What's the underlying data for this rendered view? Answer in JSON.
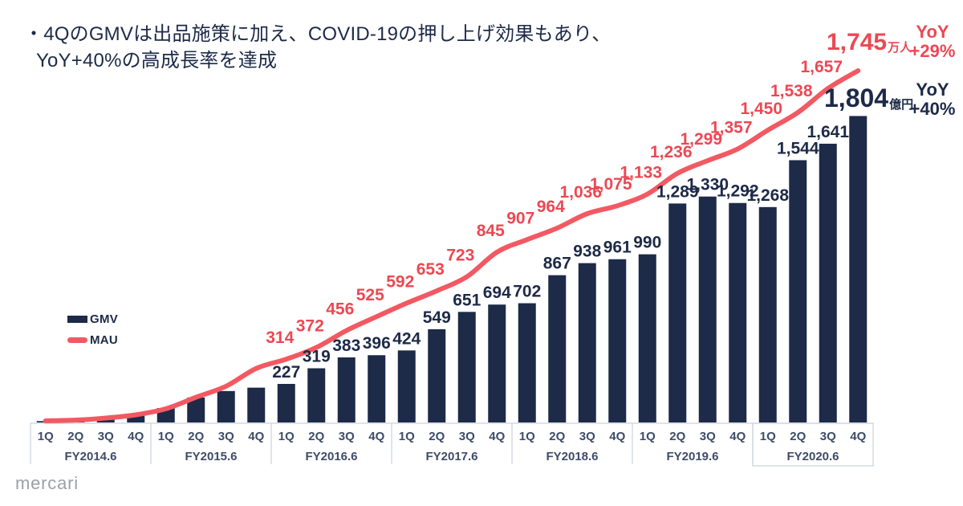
{
  "title": {
    "line1": "・4QのGMVは出品施策に加え、COVID-19の押し上げ効果もあり、",
    "line2": "YoY+40%の高成長率を達成"
  },
  "legend": {
    "gmv": "GMV",
    "mau": "MAU"
  },
  "highlights": {
    "mau_final": {
      "value": "1,745",
      "unit": "万人",
      "yoy_label": "YoY",
      "yoy_value": "+29%"
    },
    "gmv_final": {
      "value": "1,804",
      "unit": "億円",
      "yoy_label": "YoY",
      "yoy_value": "+40%"
    }
  },
  "footer": {
    "logo": "mercari"
  },
  "colors": {
    "navy": "#1d2a48",
    "red_text": "#ed4853",
    "red_line": "#f25962",
    "axis_text": "#3e4c68",
    "band_line": "#c9d1dd",
    "logo_gray": "#9aa0a8",
    "background": "#ffffff"
  },
  "chart_data": {
    "type": "bar",
    "subtype": "bar-and-line-combo",
    "title": "",
    "xlabel": "",
    "ylabel": "",
    "grid": false,
    "legend_position": "left-middle",
    "quarters": [
      "1Q",
      "2Q",
      "3Q",
      "4Q"
    ],
    "fiscal_years": [
      "FY2014.6",
      "FY2015.6",
      "FY2016.6",
      "FY2017.6",
      "FY2018.6",
      "FY2019.6",
      "FY2020.6"
    ],
    "note": "First 8 quarters (FY2014.6-FY2015.6) carry no printed data labels; their values are estimated from bar/line pixel heights.",
    "series": [
      {
        "name": "GMV",
        "type": "bar",
        "unit": "億円",
        "values": [
          8,
          13,
          22,
          42,
          85,
          147,
          185,
          205,
          227,
          319,
          383,
          396,
          424,
          549,
          651,
          694,
          702,
          867,
          938,
          961,
          990,
          1289,
          1330,
          1292,
          1268,
          1544,
          1641,
          1804
        ],
        "labels": [
          null,
          null,
          null,
          null,
          null,
          null,
          null,
          null,
          "227",
          "319",
          "383",
          "396",
          "424",
          "549",
          "651",
          "694",
          "702",
          "867",
          "938",
          "961",
          "990",
          "1,289",
          "1,330",
          "1,292",
          "1,268",
          "1,544",
          "1,641",
          "1,804"
        ],
        "final_yoy": "+40%"
      },
      {
        "name": "MAU",
        "type": "line",
        "unit": "万人",
        "values": [
          8,
          12,
          22,
          38,
          68,
          125,
          180,
          268,
          314,
          372,
          456,
          525,
          592,
          653,
          723,
          845,
          907,
          964,
          1036,
          1075,
          1133,
          1236,
          1299,
          1357,
          1450,
          1538,
          1657,
          1745
        ],
        "labels": [
          null,
          null,
          null,
          null,
          null,
          null,
          null,
          null,
          "314",
          "372",
          "456",
          "525",
          "592",
          "653",
          "723",
          "845",
          "907",
          "964",
          "1,036",
          "1,075",
          "1,133",
          "1,236",
          "1,299",
          "1,357",
          "1,450",
          "1,538",
          "1,657",
          "1,745"
        ],
        "final_yoy": "+29%"
      }
    ]
  }
}
